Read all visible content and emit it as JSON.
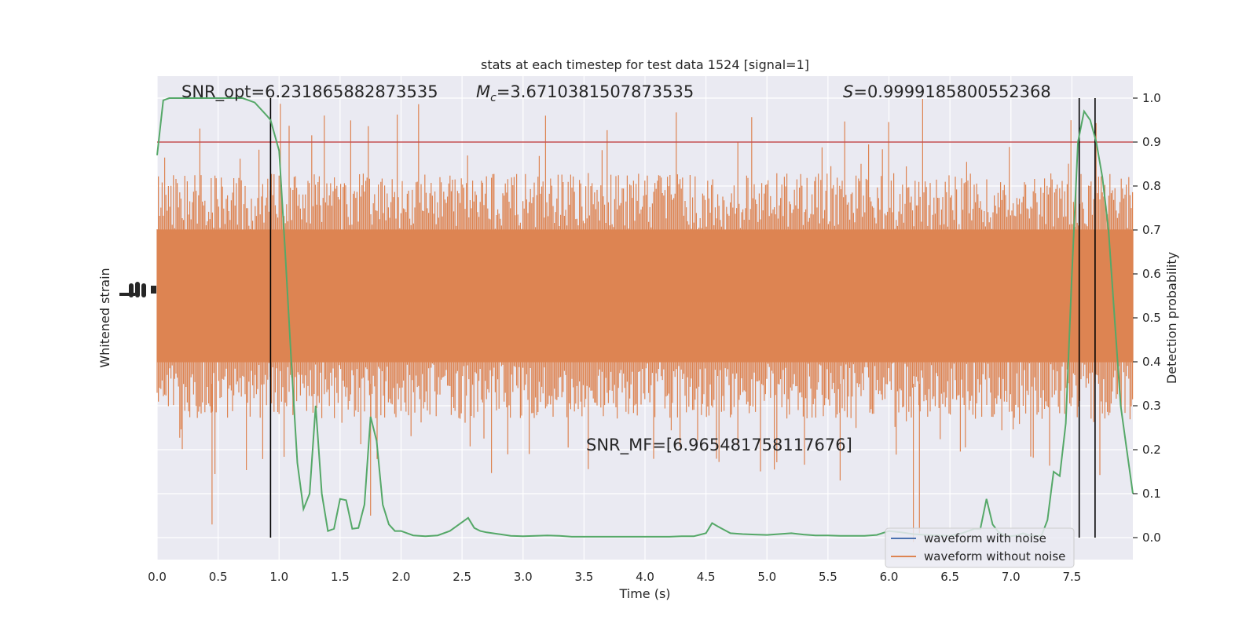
{
  "chart_data": {
    "type": "line",
    "title": "stats at each timestep for test data 1524 [signal=1]",
    "xlabel": "Time (s)",
    "ylabel_left": "Whitened strain",
    "ylabel_right": "Detection probability",
    "xlim": [
      0.0,
      8.0
    ],
    "ylim_right": [
      -0.05,
      1.05
    ],
    "xticks": [
      "0.0",
      "0.5",
      "1.0",
      "1.5",
      "2.0",
      "2.5",
      "3.0",
      "3.5",
      "4.0",
      "4.5",
      "5.0",
      "5.5",
      "6.0",
      "6.5",
      "7.0",
      "7.5"
    ],
    "yticks_right": [
      "0.0",
      "0.1",
      "0.2",
      "0.3",
      "0.4",
      "0.5",
      "0.6",
      "0.7",
      "0.8",
      "0.9",
      "1.0"
    ],
    "grid": true,
    "threshold": 0.9,
    "vertical_lines_x": [
      0.93,
      7.56,
      7.69
    ],
    "annotations": {
      "snr_opt": "SNR_opt=6.231865882873535",
      "mc_symbol": "M",
      "mc_sub": "c",
      "mc_value": "=3.6710381507873535",
      "s_symbol": "S",
      "s_value": "=0.9999185800552368",
      "snr_mf": "SNR_MF=[6.965481758117676]"
    },
    "legend": {
      "placement": "lower-right",
      "entries": [
        "waveform with noise",
        "waveform without noise"
      ]
    },
    "colors": {
      "noise_strain": "#dd8452",
      "detection_prob": "#55a868",
      "threshold": "#c44e52",
      "vlines": "#000000",
      "with_noise": "#4c72b0",
      "background": "#eaeaf2",
      "grid": "#ffffff"
    },
    "series": [
      {
        "name": "Detection probability",
        "x": [
          0.0,
          0.05,
          0.1,
          0.2,
          0.4,
          0.6,
          0.7,
          0.8,
          0.9,
          0.93,
          1.0,
          1.05,
          1.1,
          1.15,
          1.2,
          1.25,
          1.3,
          1.35,
          1.4,
          1.45,
          1.5,
          1.55,
          1.6,
          1.65,
          1.7,
          1.75,
          1.8,
          1.85,
          1.9,
          1.95,
          2.0,
          2.05,
          2.1,
          2.2,
          2.3,
          2.4,
          2.5,
          2.55,
          2.6,
          2.65,
          2.7,
          2.8,
          2.9,
          3.0,
          3.1,
          3.2,
          3.3,
          3.4,
          3.5,
          3.6,
          3.7,
          3.8,
          3.9,
          4.0,
          4.1,
          4.2,
          4.3,
          4.4,
          4.5,
          4.55,
          4.6,
          4.7,
          4.8,
          4.9,
          5.0,
          5.1,
          5.2,
          5.3,
          5.4,
          5.5,
          5.6,
          5.7,
          5.8,
          5.9,
          6.0,
          6.1,
          6.2,
          6.3,
          6.4,
          6.5,
          6.6,
          6.7,
          6.75,
          6.8,
          6.85,
          6.9,
          6.95,
          7.0,
          7.05,
          7.1,
          7.15,
          7.2,
          7.25,
          7.3,
          7.35,
          7.4,
          7.45,
          7.5,
          7.55,
          7.6,
          7.65,
          7.7,
          7.75,
          7.8,
          7.85,
          7.9,
          7.95,
          8.0
        ],
        "y": [
          0.87,
          0.995,
          1.0,
          1.0,
          1.0,
          1.0,
          1.0,
          0.99,
          0.96,
          0.95,
          0.88,
          0.65,
          0.4,
          0.17,
          0.065,
          0.1,
          0.3,
          0.1,
          0.015,
          0.02,
          0.088,
          0.085,
          0.02,
          0.022,
          0.075,
          0.275,
          0.22,
          0.075,
          0.03,
          0.015,
          0.015,
          0.01,
          0.005,
          0.003,
          0.005,
          0.015,
          0.035,
          0.045,
          0.022,
          0.015,
          0.012,
          0.008,
          0.004,
          0.003,
          0.004,
          0.005,
          0.004,
          0.002,
          0.002,
          0.002,
          0.002,
          0.002,
          0.002,
          0.002,
          0.002,
          0.002,
          0.003,
          0.003,
          0.01,
          0.033,
          0.025,
          0.01,
          0.008,
          0.007,
          0.006,
          0.008,
          0.01,
          0.007,
          0.005,
          0.005,
          0.004,
          0.004,
          0.004,
          0.006,
          0.015,
          0.012,
          0.008,
          0.006,
          0.005,
          0.004,
          0.01,
          0.02,
          0.02,
          0.088,
          0.03,
          0.012,
          0.005,
          0.003,
          0.005,
          0.01,
          0.005,
          0.004,
          0.004,
          0.04,
          0.15,
          0.14,
          0.26,
          0.6,
          0.9,
          0.97,
          0.95,
          0.9,
          0.82,
          0.7,
          0.5,
          0.3,
          0.2,
          0.1
        ]
      }
    ]
  }
}
